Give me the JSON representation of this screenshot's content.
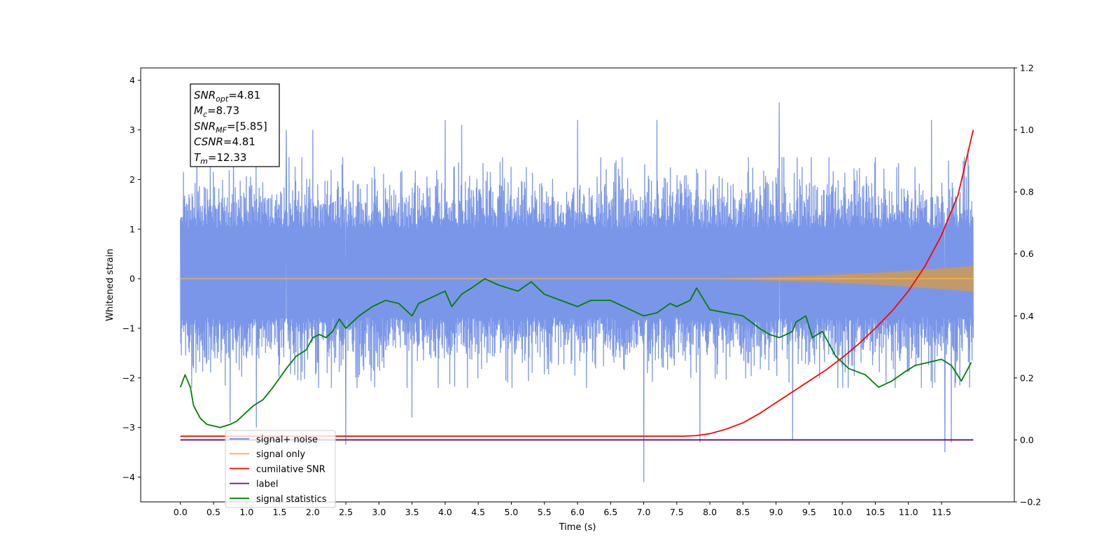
{
  "chart_data": {
    "type": "line",
    "title": "",
    "xlabel": "Time (s)",
    "ylabel": "Whitened strain",
    "y2label": "",
    "xlim": [
      -0.6,
      12.6
    ],
    "ylim": [
      -4.5,
      4.25
    ],
    "y2lim": [
      -0.2,
      1.2
    ],
    "x_ticks": [
      "0.0",
      "0.5",
      "1.0",
      "1.5",
      "2.0",
      "2.5",
      "3.0",
      "3.5",
      "4.0",
      "4.5",
      "5.0",
      "5.5",
      "6.0",
      "6.5",
      "7.0",
      "7.5",
      "8.0",
      "8.5",
      "9.0",
      "9.5",
      "10.0",
      "10.5",
      "11.0",
      "11.5"
    ],
    "y_ticks": [
      "4",
      "3",
      "2",
      "1",
      "0",
      "−1",
      "−2",
      "−3",
      "−4"
    ],
    "y2_ticks": [
      "1.2",
      "1.0",
      "0.8",
      "0.6",
      "0.4",
      "0.2",
      "0.0",
      "−0.2"
    ],
    "grid": false,
    "legend_position": "lower-left",
    "info_box": {
      "lines": [
        {
          "label": "SNR",
          "sub": "opt",
          "value": "=4.81"
        },
        {
          "label": "M",
          "sub": "c",
          "value": "=8.73"
        },
        {
          "label": "SNR",
          "sub": "MF",
          "value": "=[5.85]"
        },
        {
          "label": "CSNR",
          "sub": "",
          "value": "=4.81"
        },
        {
          "label": "T",
          "sub": "m",
          "value": "=12.33"
        }
      ]
    },
    "noise_summary": {
      "t_start": 0.0,
      "t_end": 11.98,
      "typical_range": [
        -1.8,
        2.0
      ],
      "peaks": [
        [
          0.25,
          2.8
        ],
        [
          0.45,
          2.6
        ],
        [
          0.8,
          2.9
        ],
        [
          1.6,
          3.0
        ],
        [
          2.0,
          3.0
        ],
        [
          4.0,
          3.2
        ],
        [
          4.25,
          3.1
        ],
        [
          6.0,
          3.2
        ],
        [
          7.2,
          3.2
        ],
        [
          9.05,
          3.55
        ],
        [
          11.35,
          3.2
        ],
        [
          11.9,
          2.6
        ]
      ],
      "troughs": [
        [
          0.75,
          -2.9
        ],
        [
          1.15,
          -3.0
        ],
        [
          2.5,
          -3.35
        ],
        [
          3.5,
          -2.8
        ],
        [
          7.0,
          -4.1
        ],
        [
          7.85,
          -3.3
        ],
        [
          9.25,
          -3.25
        ],
        [
          11.55,
          -3.5
        ],
        [
          11.65,
          -3.3
        ]
      ]
    },
    "series": [
      {
        "name": "signal+ noise",
        "color": "#6b8be6",
        "axis": "left",
        "values": []
      },
      {
        "name": "signal only",
        "color": "#ffb347",
        "axis": "left",
        "x": [
          0.0,
          8.0,
          8.5,
          9.0,
          9.5,
          10.0,
          10.5,
          11.0,
          11.5,
          11.98
        ],
        "amplitude": [
          0.0,
          0.0,
          0.02,
          0.04,
          0.06,
          0.09,
          0.12,
          0.16,
          0.21,
          0.26
        ]
      },
      {
        "name": "cumilative SNR",
        "color": "#ff0000",
        "axis": "right",
        "x": [
          0.0,
          7.6,
          7.8,
          8.0,
          8.25,
          8.5,
          8.75,
          9.0,
          9.25,
          9.5,
          9.75,
          10.0,
          10.25,
          10.5,
          10.75,
          11.0,
          11.25,
          11.5,
          11.75,
          11.98
        ],
        "values": [
          0.012,
          0.012,
          0.014,
          0.02,
          0.035,
          0.055,
          0.085,
          0.12,
          0.155,
          0.19,
          0.225,
          0.265,
          0.31,
          0.36,
          0.415,
          0.48,
          0.56,
          0.66,
          0.79,
          1.0
        ]
      },
      {
        "name": "label",
        "color": "#6a0d6a",
        "axis": "right",
        "x": [
          0.0,
          11.98
        ],
        "values": [
          0.0,
          0.0
        ]
      },
      {
        "name": "signal statistics",
        "color": "#008000",
        "axis": "right",
        "x": [
          0.0,
          0.07,
          0.15,
          0.2,
          0.3,
          0.4,
          0.5,
          0.6,
          0.75,
          0.85,
          1.0,
          1.1,
          1.25,
          1.4,
          1.6,
          1.75,
          1.9,
          2.0,
          2.1,
          2.2,
          2.3,
          2.4,
          2.5,
          2.7,
          2.9,
          3.0,
          3.1,
          3.3,
          3.5,
          3.6,
          3.8,
          4.0,
          4.1,
          4.25,
          4.4,
          4.6,
          4.8,
          5.1,
          5.3,
          5.5,
          5.75,
          6.0,
          6.2,
          6.5,
          6.8,
          7.0,
          7.2,
          7.4,
          7.5,
          7.7,
          7.8,
          8.0,
          8.25,
          8.5,
          8.75,
          8.9,
          9.05,
          9.25,
          9.3,
          9.45,
          9.55,
          9.7,
          9.9,
          10.1,
          10.35,
          10.55,
          10.75,
          10.95,
          11.1,
          11.3,
          11.5,
          11.65,
          11.8,
          11.95
        ],
        "values": [
          0.17,
          0.21,
          0.17,
          0.11,
          0.07,
          0.05,
          0.045,
          0.04,
          0.05,
          0.06,
          0.09,
          0.11,
          0.13,
          0.17,
          0.23,
          0.27,
          0.29,
          0.33,
          0.34,
          0.33,
          0.35,
          0.39,
          0.36,
          0.4,
          0.43,
          0.44,
          0.45,
          0.44,
          0.4,
          0.44,
          0.46,
          0.48,
          0.43,
          0.47,
          0.49,
          0.52,
          0.5,
          0.48,
          0.51,
          0.47,
          0.45,
          0.43,
          0.45,
          0.45,
          0.42,
          0.4,
          0.41,
          0.44,
          0.43,
          0.45,
          0.49,
          0.42,
          0.41,
          0.4,
          0.36,
          0.34,
          0.33,
          0.35,
          0.38,
          0.4,
          0.33,
          0.35,
          0.27,
          0.23,
          0.21,
          0.17,
          0.19,
          0.22,
          0.24,
          0.25,
          0.26,
          0.24,
          0.19,
          0.25
        ]
      }
    ]
  }
}
